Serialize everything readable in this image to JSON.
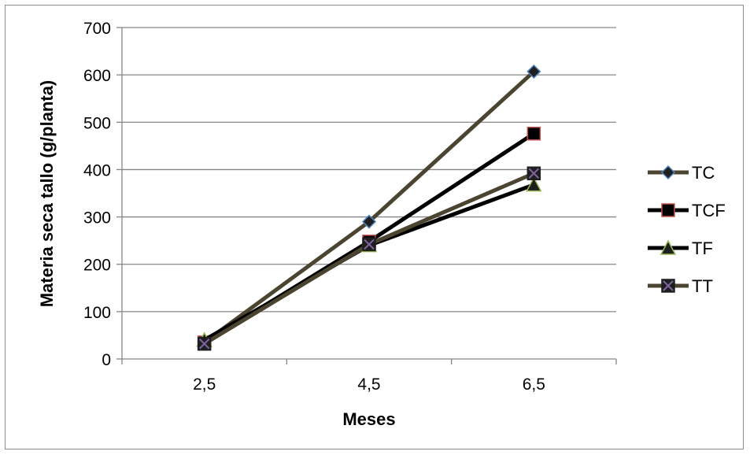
{
  "chart_data": {
    "type": "line",
    "categories": [
      "2,5",
      "4,5",
      "6,5"
    ],
    "xlabel": "Meses",
    "ylabel": "Materia seca tallo (g/planta)",
    "ylim": [
      0,
      700
    ],
    "yticks": [
      "0",
      "100",
      "200",
      "300",
      "400",
      "500",
      "600",
      "700"
    ],
    "grid": true,
    "legend_position": "right",
    "series": [
      {
        "name": "TC",
        "values": [
          35,
          290,
          607
        ],
        "color": "#4a4431",
        "marker": "diamond",
        "marker_fill": "#1f1f1f",
        "marker_edge": "#4f81bd"
      },
      {
        "name": "TCF",
        "values": [
          35,
          248,
          476
        ],
        "color": "#000000",
        "marker": "square",
        "marker_fill": "#000000",
        "marker_edge": "#c0504d"
      },
      {
        "name": "TF",
        "values": [
          40,
          240,
          368
        ],
        "color": "#000000",
        "marker": "triangle",
        "marker_fill": "#1f1f1f",
        "marker_edge": "#9bbb59"
      },
      {
        "name": "TT",
        "values": [
          32,
          242,
          392
        ],
        "color": "#4a4431",
        "marker": "x-square",
        "marker_fill": "#1f1f1f",
        "marker_edge": "#8064a2"
      }
    ]
  }
}
